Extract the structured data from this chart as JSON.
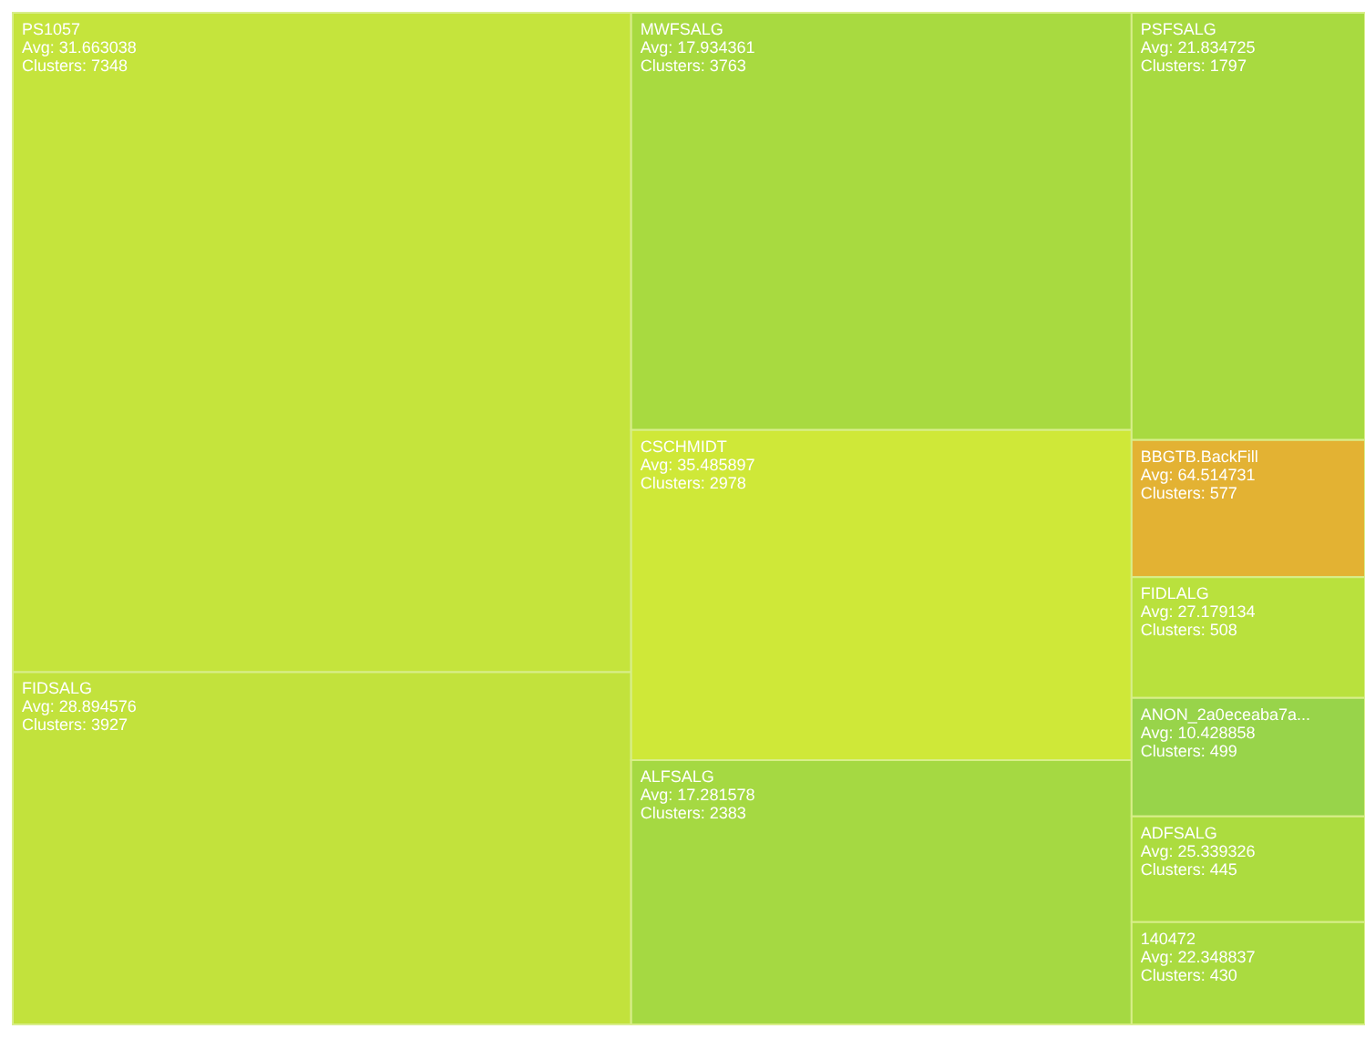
{
  "chart_data": {
    "type": "other",
    "categories": [
      "PS1057",
      "FIDSALG",
      "MWFSALG",
      "CSCHMIDT",
      "ALFSALG",
      "PSFSALG",
      "BBGTB.BackFill",
      "FIDLALG",
      "ANON_2a0eceaba7a...",
      "ADFSALG",
      "140472"
    ],
    "values": [
      7348,
      3927,
      3763,
      2978,
      2383,
      1797,
      577,
      508,
      499,
      445,
      430
    ],
    "value_labels": [
      "Avg: 31.663038\nClusters: 7348",
      "Avg: 28.894576\nClusters: 3927",
      "Avg: 17.934361\nClusters: 3763",
      "Avg: 35.485897\nClusters: 2978",
      "Avg: 17.281578\nClusters: 2383",
      "Avg: 21.834725\nClusters: 1797",
      "Avg: 64.514731\nClusters: 577",
      "Avg: 27.179134\nClusters: 508",
      "Avg: 10.428858\nClusters: 499",
      "Avg: 25.339326\nClusters: 445",
      "Avg: 22.348837\nClusters: 430"
    ],
    "colors": [
      "#c5e43c",
      "#c2e23c",
      "#a8da40",
      "#cfe838",
      "#a5d942",
      "#a8da40",
      "#e3b233",
      "#b9e13d",
      "#98d44a",
      "#acdc3f",
      "#aadb40"
    ]
  }
}
